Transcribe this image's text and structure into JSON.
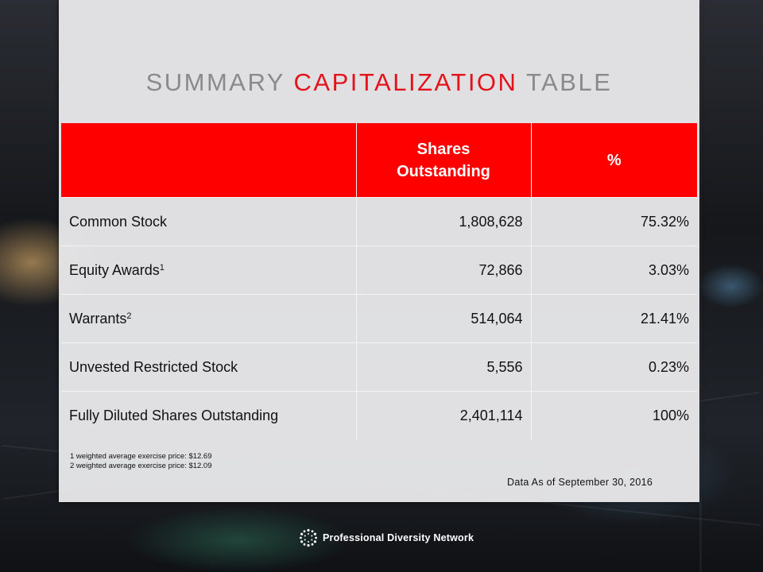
{
  "slide": {
    "title_part1": "SUMMARY ",
    "title_accent": "CAPITALIZATION",
    "title_part2": " TABLE"
  },
  "table": {
    "headers": [
      "",
      "Shares Outstanding",
      "%"
    ],
    "rows": [
      {
        "label": "Common Stock",
        "sup": "",
        "shares": "1,808,628",
        "pct": "75.32%"
      },
      {
        "label": "Equity Awards",
        "sup": "1",
        "shares": "72,866",
        "pct": "3.03%"
      },
      {
        "label": "Warrants",
        "sup": "2",
        "shares": "514,064",
        "pct": "21.41%"
      },
      {
        "label": "Unvested Restricted Stock",
        "sup": "",
        "shares": "5,556",
        "pct": "0.23%"
      },
      {
        "label": "Fully Diluted Shares Outstanding",
        "sup": "",
        "shares": "2,401,114",
        "pct": "100%"
      }
    ]
  },
  "footnotes": [
    "1 weighted average exercise price: $12.69",
    "2 weighted average exercise price: $12.09"
  ],
  "as_of": "Data As of September 30, 2016",
  "logo": {
    "text": "Professional Diversity Network",
    "icon": "starburst-dots-icon"
  },
  "colors": {
    "accent": "#e3131b",
    "header_bg": "#ff0000",
    "title_gray": "#8a8a8a"
  }
}
